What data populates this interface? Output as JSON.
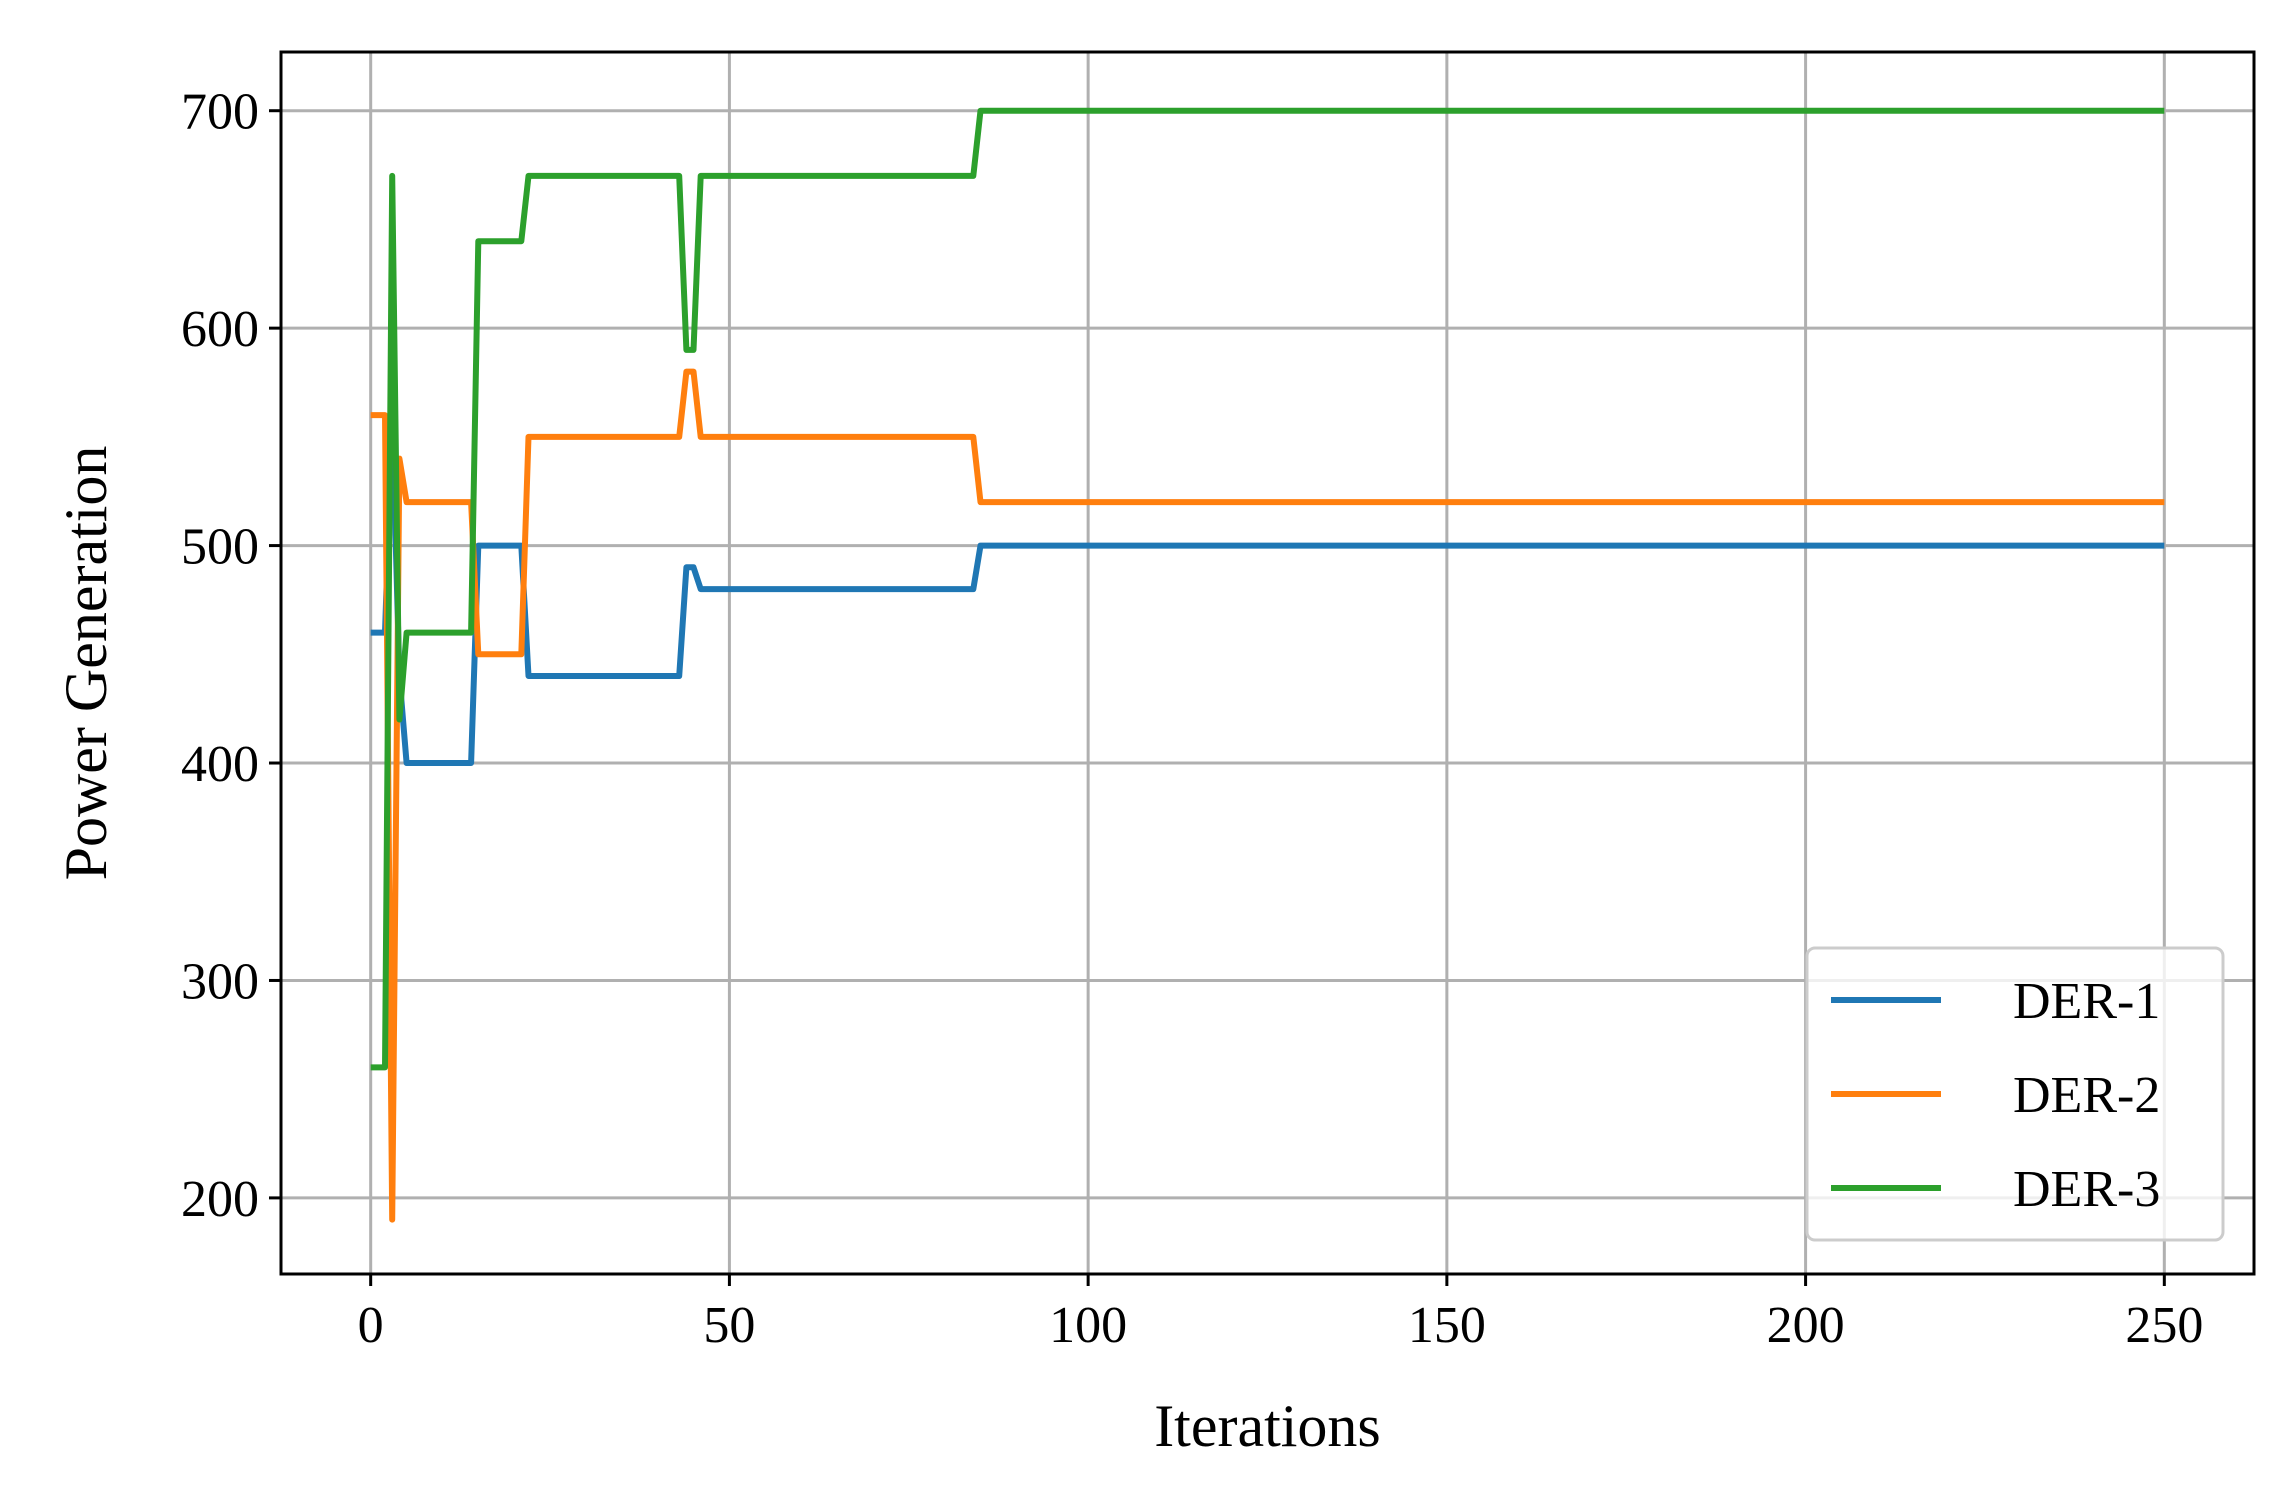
{
  "chart_data": {
    "type": "line",
    "title": "",
    "xlabel": "Iterations",
    "ylabel": "Power Generation",
    "xlim": [
      -12.5,
      262.5
    ],
    "ylim": [
      165,
      727
    ],
    "xticks": [
      0,
      50,
      100,
      150,
      200,
      250
    ],
    "xtick_labels": [
      "0",
      "50",
      "100",
      "150",
      "200",
      "250"
    ],
    "yticks": [
      200,
      300,
      400,
      500,
      600,
      700
    ],
    "ytick_labels": [
      "200",
      "300",
      "400",
      "500",
      "600",
      "700"
    ],
    "grid": true,
    "legend_position": "lower-right",
    "series": [
      {
        "name": "DER-1",
        "color": "#1f77b4",
        "x": [
          0,
          1,
          2,
          3,
          4,
          5,
          14,
          15,
          21,
          22,
          43,
          44,
          45,
          46,
          84,
          85,
          250
        ],
        "y": [
          460,
          460,
          460,
          560,
          440,
          400,
          400,
          500,
          500,
          440,
          440,
          490,
          490,
          480,
          480,
          500,
          500
        ]
      },
      {
        "name": "DER-2",
        "color": "#ff7f0e",
        "x": [
          0,
          1,
          2,
          3,
          4,
          5,
          14,
          15,
          21,
          22,
          43,
          44,
          45,
          46,
          84,
          85,
          250
        ],
        "y": [
          560,
          560,
          560,
          190,
          540,
          520,
          520,
          450,
          450,
          550,
          550,
          580,
          580,
          550,
          550,
          520,
          520
        ]
      },
      {
        "name": "DER-3",
        "color": "#2ca02c",
        "x": [
          0,
          1,
          2,
          3,
          4,
          5,
          14,
          15,
          21,
          22,
          43,
          44,
          45,
          46,
          84,
          85,
          250
        ],
        "y": [
          260,
          260,
          260,
          670,
          420,
          460,
          460,
          640,
          640,
          670,
          670,
          590,
          590,
          670,
          670,
          700,
          700
        ]
      }
    ]
  }
}
